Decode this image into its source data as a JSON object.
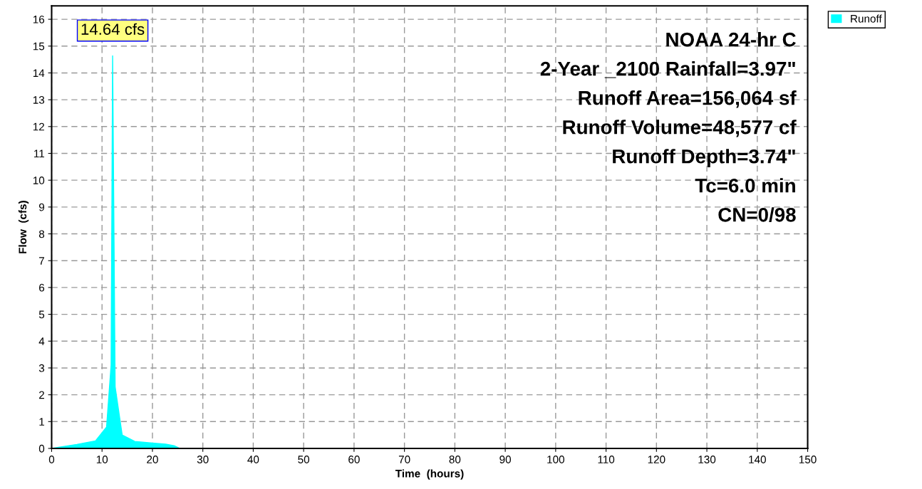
{
  "chart_data": {
    "type": "area",
    "xlabel": "Time  (hours)",
    "ylabel": "Flow  (cfs)",
    "x": [
      0,
      5,
      8.7,
      10.9,
      11.8,
      12.1,
      12.6,
      14,
      16.5,
      20,
      22.6,
      24.3,
      25.4,
      30,
      50,
      100,
      150
    ],
    "series": [
      {
        "name": "Runoff",
        "color": "#00ffff",
        "values": [
          0,
          0.15,
          0.28,
          0.8,
          3.1,
          14.64,
          2.3,
          0.5,
          0.26,
          0.2,
          0.16,
          0.1,
          0,
          0,
          0,
          0,
          0
        ]
      }
    ],
    "xlim": [
      0,
      150
    ],
    "xticks": [
      0,
      10,
      20,
      30,
      40,
      50,
      60,
      70,
      80,
      90,
      100,
      110,
      120,
      130,
      140,
      150
    ],
    "ylim": [
      0,
      16.5
    ],
    "yticks": [
      0,
      1,
      2,
      3,
      4,
      5,
      6,
      7,
      8,
      9,
      10,
      11,
      12,
      13,
      14,
      15,
      16
    ],
    "grid": true,
    "legend": "top right",
    "annotations": [
      {
        "text": "14.64 cfs",
        "x": 12.1,
        "y": 14.64
      },
      "NOAA 24-hr C",
      "2-Year _2100 Rainfall=3.97\"",
      "Runoff Area=156,064 sf",
      "Runoff Volume=48,577 cf",
      "Runoff Depth=3.74\"",
      "Tc=6.0 min",
      "CN=0/98"
    ]
  }
}
